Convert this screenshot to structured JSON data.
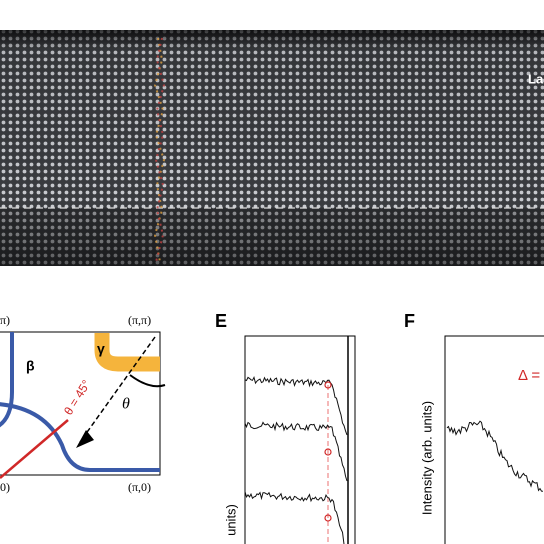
{
  "stem_image": {
    "label": "La"
  },
  "panel_d": {
    "corner_top_left": "π)",
    "corner_top_right": "(π,π)",
    "corner_bottom_left": "0)",
    "corner_bottom_right": "(π,0)",
    "band_beta": "β",
    "band_gamma": "γ",
    "angle_cut": "θ = 45°",
    "angle": "θ"
  },
  "panel_e": {
    "label": "E",
    "y_axis": "units)"
  },
  "panel_f": {
    "label": "F",
    "y_axis": "Intensity (arb. units)",
    "gap": "Δ ="
  }
}
